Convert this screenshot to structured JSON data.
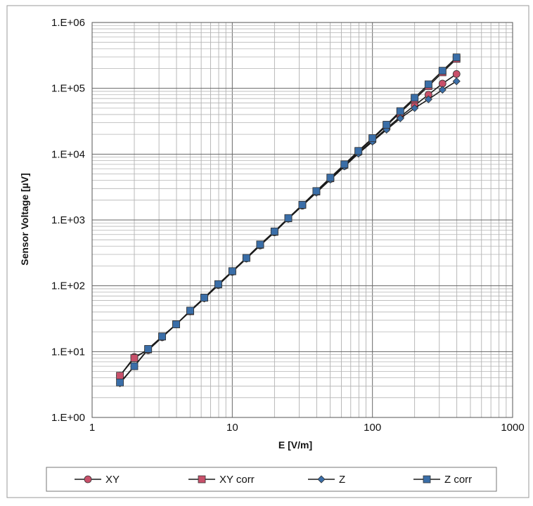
{
  "chart_data": {
    "type": "line",
    "title": "",
    "xlabel": "E [V/m]",
    "ylabel": "Sensor Voltage [µV]",
    "x_scale": "log",
    "y_scale": "log",
    "xlim": [
      1,
      1000
    ],
    "ylim": [
      1,
      1000000
    ],
    "x_tick_labels": [
      "1",
      "10",
      "100",
      "1000"
    ],
    "y_tick_labels": [
      "1.E+00",
      "1.E+01",
      "1.E+02",
      "1.E+03",
      "1.E+04",
      "1.E+05",
      "1.E+06"
    ],
    "grid": true,
    "legend_position": "bottom",
    "x": [
      1.58,
      2.0,
      2.51,
      3.16,
      3.98,
      5.01,
      6.31,
      7.94,
      10.0,
      12.6,
      15.8,
      20.0,
      25.1,
      31.6,
      39.8,
      50.1,
      63.1,
      79.4,
      100,
      126,
      158,
      200,
      251,
      316,
      398
    ],
    "series": [
      {
        "name": "XY",
        "marker": "circle",
        "color": "#c8506a",
        "values": [
          4.3,
          8.3,
          10.5,
          16.5,
          26,
          41,
          65,
          103,
          163,
          260,
          410,
          650,
          1050,
          1650,
          2650,
          4200,
          6600,
          10500,
          16000,
          24500,
          37000,
          55000,
          80000,
          118000,
          165000
        ]
      },
      {
        "name": "XY corr",
        "marker": "square",
        "color": "#c8506a",
        "values": [
          4.3,
          8.0,
          10.8,
          17,
          26,
          41,
          66,
          105,
          166,
          265,
          420,
          660,
          1060,
          1700,
          2700,
          4300,
          6900,
          11000,
          17000,
          27000,
          43000,
          68000,
          108000,
          175000,
          280000
        ]
      },
      {
        "name": "Z",
        "marker": "diamond",
        "color": "#3a6ea8",
        "values": [
          3.3,
          6.0,
          10.8,
          16.5,
          26,
          41,
          64,
          102,
          163,
          258,
          410,
          650,
          1040,
          1650,
          2600,
          4100,
          6500,
          10200,
          15500,
          23500,
          35000,
          50000,
          68000,
          95000,
          128000
        ]
      },
      {
        "name": "Z corr",
        "marker": "square",
        "color": "#3a6ea8",
        "values": [
          3.4,
          6.0,
          11,
          17,
          26,
          42,
          66,
          106,
          167,
          265,
          425,
          670,
          1070,
          1700,
          2750,
          4400,
          7000,
          11200,
          17500,
          28000,
          45000,
          72000,
          115000,
          185000,
          295000
        ]
      }
    ]
  }
}
